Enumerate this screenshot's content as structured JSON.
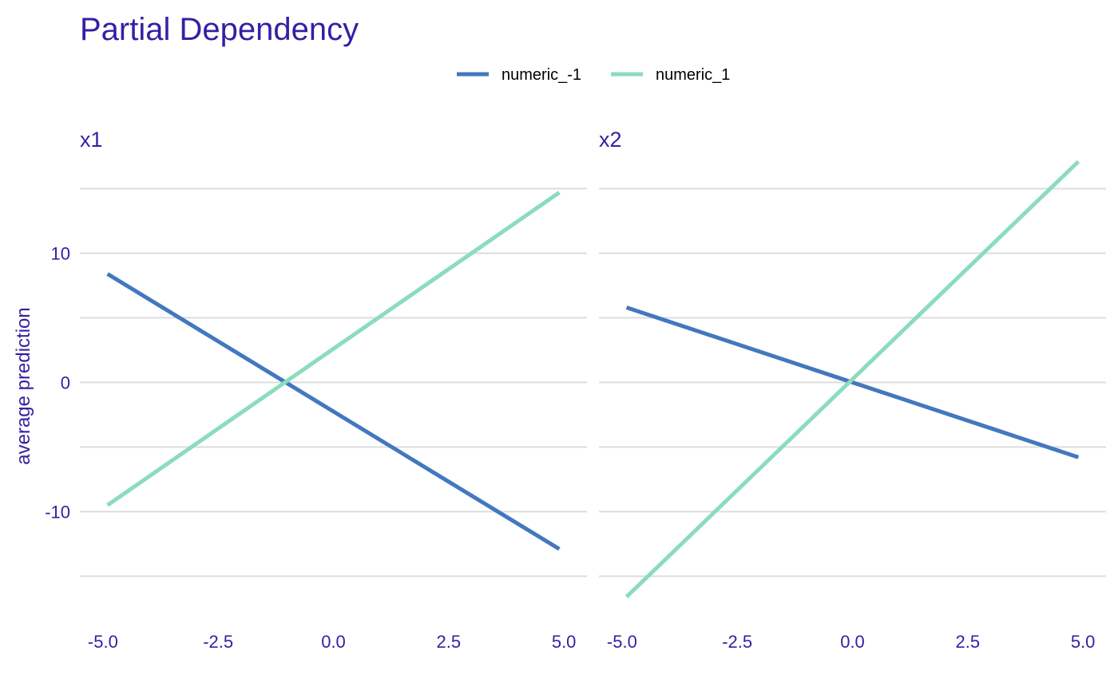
{
  "chart_data": {
    "type": "line",
    "title": "Partial Dependency",
    "ylabel": "average prediction",
    "xlabel": "",
    "xlim": [
      -5.5,
      5.5
    ],
    "ylim": [
      -18.5,
      17.5
    ],
    "x_ticks": [
      "-5.0",
      "-2.5",
      "0.0",
      "2.5",
      "5.0"
    ],
    "y_ticks": [
      "-10",
      "0",
      "10"
    ],
    "grid": true,
    "legend_position": "top",
    "legend": [
      {
        "name": "numeric_-1",
        "color": "#4378bf"
      },
      {
        "name": "numeric_1",
        "color": "#8bdcbe"
      }
    ],
    "panels": [
      {
        "title": "x1",
        "series": [
          {
            "name": "numeric_-1",
            "color": "#4378bf",
            "x": [
              -4.9,
              4.9
            ],
            "y": [
              8.4,
              -12.9
            ]
          },
          {
            "name": "numeric_1",
            "color": "#8bdcbe",
            "x": [
              -4.9,
              4.9
            ],
            "y": [
              -9.5,
              14.7
            ]
          }
        ]
      },
      {
        "title": "x2",
        "series": [
          {
            "name": "numeric_-1",
            "color": "#4378bf",
            "x": [
              -4.9,
              4.9
            ],
            "y": [
              5.8,
              -5.8
            ]
          },
          {
            "name": "numeric_1",
            "color": "#8bdcbe",
            "x": [
              -4.9,
              4.9
            ],
            "y": [
              -16.6,
              17.1
            ]
          }
        ]
      }
    ]
  }
}
